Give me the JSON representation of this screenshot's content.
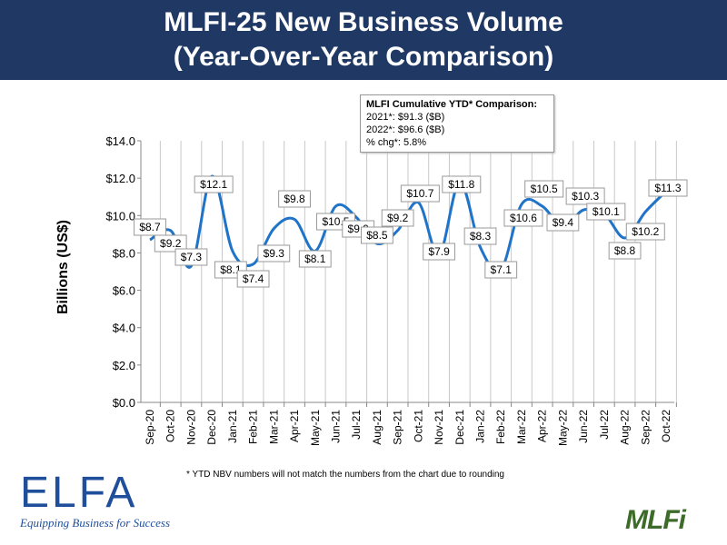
{
  "header": {
    "line1": "MLFI-25 New Business Volume",
    "line2": "(Year-Over-Year Comparison)"
  },
  "ytd_box": {
    "title": "MLFI Cumulative YTD* Comparison:",
    "line1": "2021*: $91.3 ($B)",
    "line2": "2022*: $96.6 ($B)",
    "line3": "% chg*:  5.8%"
  },
  "footnote": "*  YTD NBV numbers will not match the numbers from the chart due to rounding",
  "logos": {
    "elfa": "ELFA",
    "elfa_tagline": "Equipping Business for Success",
    "mlfi": "MLFi"
  },
  "chart_data": {
    "type": "line",
    "ylabel": "Billions (US$)",
    "ylim": [
      0,
      14
    ],
    "yticks": [
      "$0.0",
      "$2.0",
      "$4.0",
      "$6.0",
      "$8.0",
      "$10.0",
      "$12.0",
      "$14.0"
    ],
    "grid": "vertical",
    "categories": [
      "Sep-20",
      "Oct-20",
      "Nov-20",
      "Dec-20",
      "Jan-21",
      "Feb-21",
      "Mar-21",
      "Apr-21",
      "May-21",
      "Jun-21",
      "Jul-21",
      "Aug-21",
      "Sep-21",
      "Oct-21",
      "Nov-21",
      "Dec-21",
      "Jan-22",
      "Feb-22",
      "Mar-22",
      "Apr-22",
      "May-22",
      "Jun-22",
      "Jul-22",
      "Aug-22",
      "Sep-22",
      "Oct-22"
    ],
    "values": [
      8.7,
      9.2,
      7.3,
      12.1,
      8.1,
      7.4,
      9.3,
      9.8,
      8.1,
      10.5,
      9.9,
      8.5,
      9.2,
      10.7,
      7.9,
      11.8,
      8.3,
      7.1,
      10.6,
      10.5,
      9.4,
      10.3,
      10.1,
      8.8,
      10.2,
      11.3
    ],
    "data_labels": [
      "$8.7",
      "$9.2",
      "$7.3",
      "$12.1",
      "$8.1",
      "$7.4",
      "$9.3",
      "$9.8",
      "$8.1",
      "$10.5",
      "$9.9",
      "$8.5",
      "$9.2",
      "$10.7",
      "$7.9",
      "$11.8",
      "$8.3",
      "$7.1",
      "$10.6",
      "$10.5",
      "$9.4",
      "$10.3",
      "$10.1",
      "$8.8",
      "$10.2",
      "$11.3"
    ],
    "line_color": "#1f73c8"
  }
}
